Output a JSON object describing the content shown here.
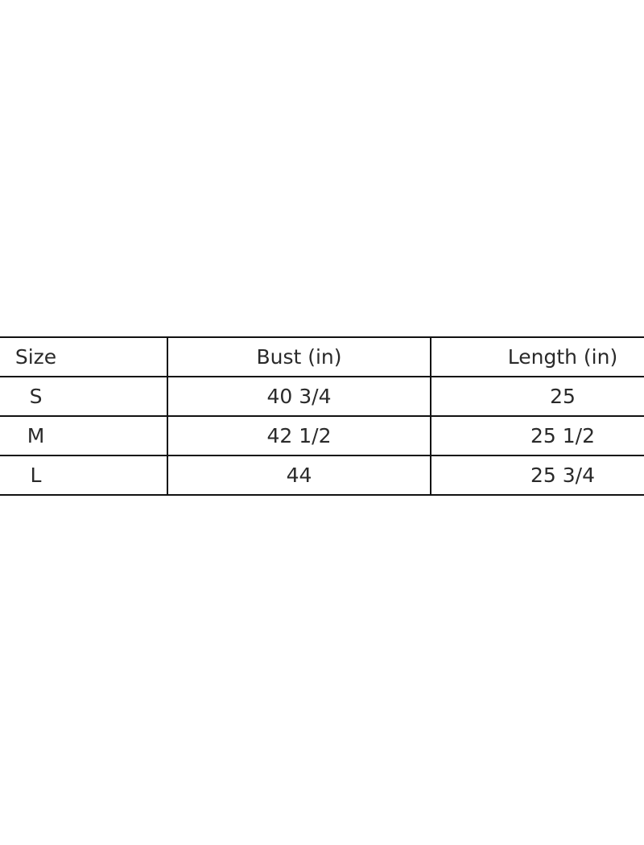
{
  "table": {
    "headers": [
      "Size",
      "Bust (in)",
      "Length (in)"
    ],
    "rows": [
      [
        "S",
        "40 3/4",
        "25"
      ],
      [
        "M",
        "42 1/2",
        "25 1/2"
      ],
      [
        "L",
        "44",
        "25 3/4"
      ]
    ]
  }
}
